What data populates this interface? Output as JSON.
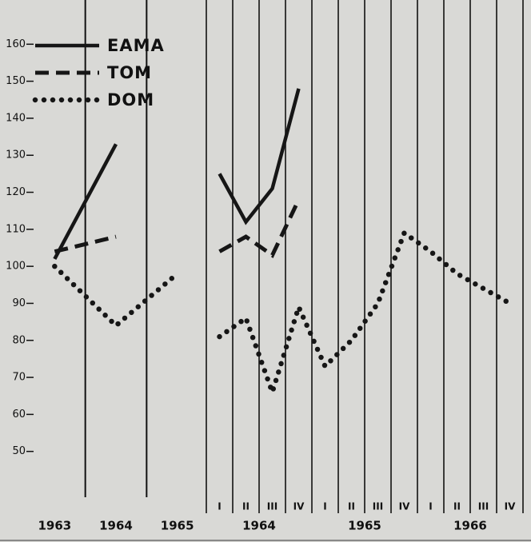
{
  "chart_data": [
    {
      "type": "line",
      "categories": [
        "1963",
        "1964",
        "1965"
      ],
      "ylim": [
        40,
        170
      ],
      "yticks": [
        50,
        60,
        70,
        80,
        90,
        100,
        110,
        120,
        130,
        140,
        150,
        160
      ],
      "legend": "upper left",
      "series": [
        {
          "name": "EAMA",
          "style": "solid",
          "color": "#161616",
          "values": [
            102,
            133,
            null
          ]
        },
        {
          "name": "TOM",
          "style": "dashed",
          "color": "#161616",
          "values": [
            104,
            108,
            null
          ]
        },
        {
          "name": "DOM",
          "style": "dotted",
          "color": "#161616",
          "values": [
            100,
            84,
            98
          ]
        }
      ]
    },
    {
      "type": "line",
      "categories": [
        "I",
        "II",
        "III",
        "IV",
        "I",
        "II",
        "III",
        "IV",
        "I",
        "II",
        "III",
        "IV"
      ],
      "groups": [
        "1964",
        "1965",
        "1966"
      ],
      "ylim": [
        40,
        170
      ],
      "grid": true,
      "series": [
        {
          "style": "solid",
          "color": "#161616",
          "values": [
            125,
            112,
            121,
            148,
            null,
            null,
            null,
            null,
            null,
            null,
            null,
            null
          ]
        },
        {
          "style": "dashed",
          "color": "#161616",
          "values": [
            104,
            108,
            103,
            118,
            null,
            null,
            null,
            null,
            null,
            null,
            null,
            null
          ]
        },
        {
          "style": "dotted",
          "color": "#161616",
          "values": [
            81,
            86,
            66,
            89,
            73,
            80,
            90,
            109,
            104,
            98,
            94,
            90
          ]
        }
      ]
    }
  ]
}
